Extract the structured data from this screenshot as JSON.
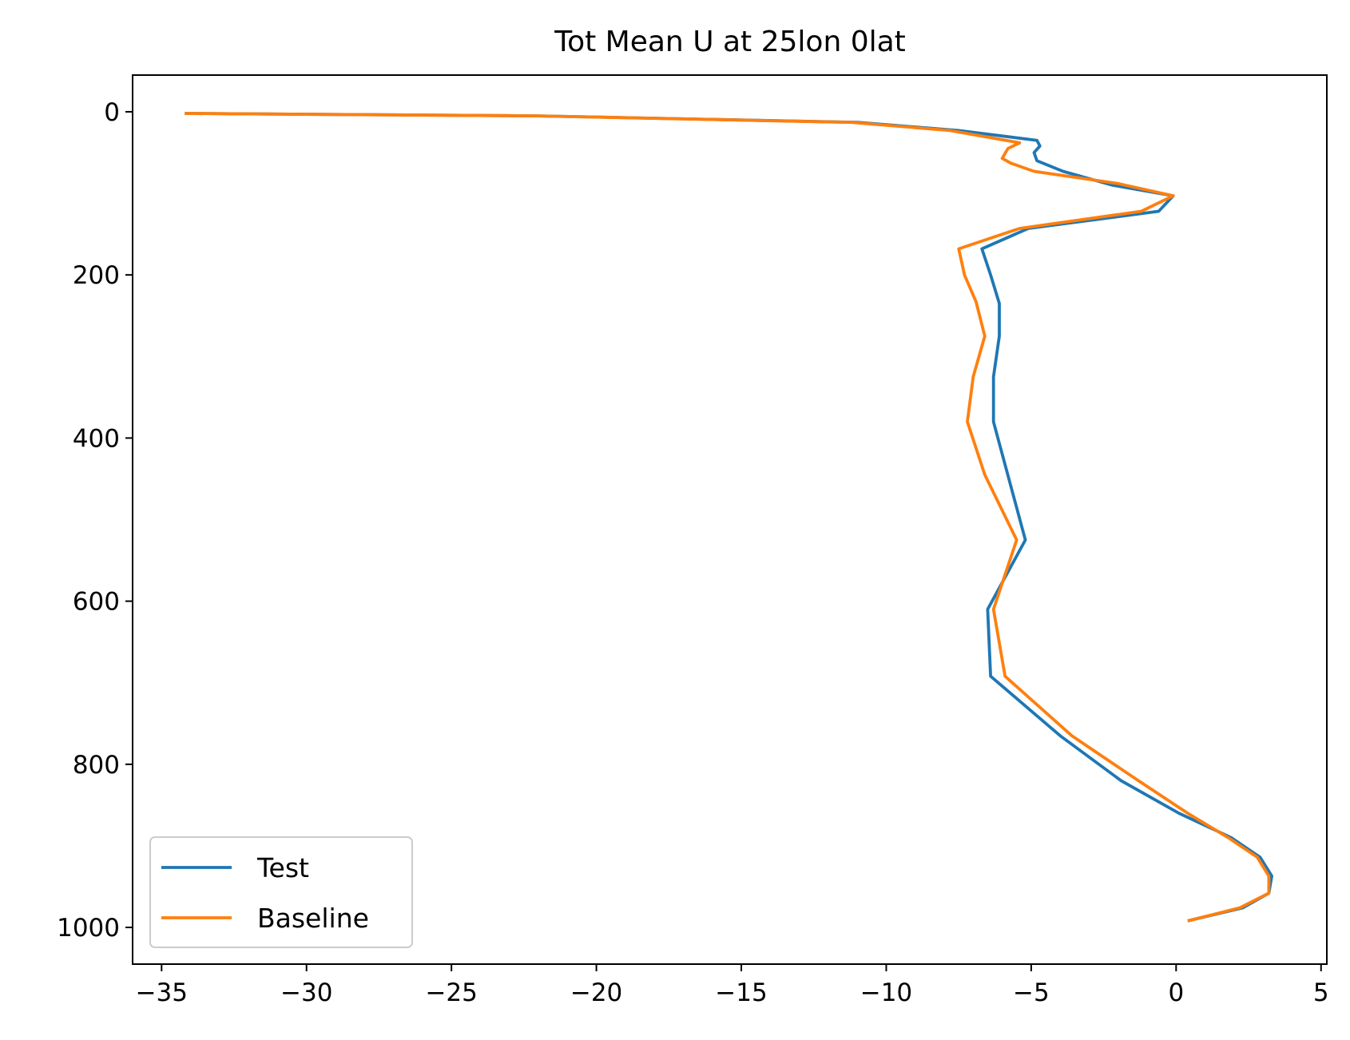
{
  "chart_data": {
    "type": "line",
    "title": "Tot Mean U at 25lon 0lat",
    "xlabel": "",
    "ylabel": "",
    "xlim": [
      -36,
      5.2
    ],
    "ylim": [
      1045,
      -45
    ],
    "y_inverted": true,
    "grid": false,
    "legend_position": "lower-left",
    "x_ticks": [
      -35,
      -30,
      -25,
      -20,
      -15,
      -10,
      -5,
      0,
      5
    ],
    "x_tick_labels": [
      "−35",
      "−30",
      "−25",
      "−20",
      "−15",
      "−10",
      "−5",
      "0",
      "5"
    ],
    "y_ticks": [
      0,
      200,
      400,
      600,
      800,
      1000
    ],
    "y_tick_labels": [
      "0",
      "200",
      "400",
      "600",
      "800",
      "1000"
    ],
    "series": [
      {
        "name": "Test",
        "color": "#1f77b4",
        "x": [
          -34.2,
          -22.0,
          -11.0,
          -7.5,
          -4.8,
          -4.7,
          -4.9,
          -4.8,
          -3.9,
          -2.2,
          -0.1,
          -0.6,
          -5.1,
          -6.7,
          -6.4,
          -6.1,
          -6.1,
          -6.3,
          -6.3,
          -5.2,
          -6.5,
          -6.4,
          -4.0,
          -1.9,
          0.1,
          1.9,
          2.9,
          3.3,
          3.2,
          2.3,
          0.4
        ],
        "y": [
          2,
          5,
          13,
          23,
          35,
          42,
          50,
          60,
          73,
          90,
          103,
          122,
          143,
          168,
          200,
          235,
          275,
          325,
          380,
          525,
          610,
          692,
          765,
          820,
          860,
          890,
          914,
          937,
          958,
          976,
          992
        ]
      },
      {
        "name": "Baseline",
        "color": "#ff7f0e",
        "x": [
          -34.2,
          -22.0,
          -11.2,
          -7.8,
          -5.4,
          -5.8,
          -6.0,
          -5.7,
          -4.9,
          -2.0,
          -0.1,
          -1.2,
          -5.4,
          -7.5,
          -7.3,
          -6.9,
          -6.6,
          -7.0,
          -7.2,
          -6.6,
          -5.5,
          -6.3,
          -5.9,
          -3.6,
          -1.3,
          0.4,
          1.8,
          2.8,
          3.2,
          3.2,
          2.2,
          0.4
        ],
        "y": [
          2,
          5,
          13,
          23,
          38,
          45,
          57,
          63,
          73,
          88,
          103,
          122,
          143,
          168,
          200,
          233,
          275,
          325,
          380,
          445,
          525,
          610,
          692,
          765,
          820,
          860,
          890,
          914,
          937,
          958,
          976,
          992
        ]
      }
    ]
  }
}
